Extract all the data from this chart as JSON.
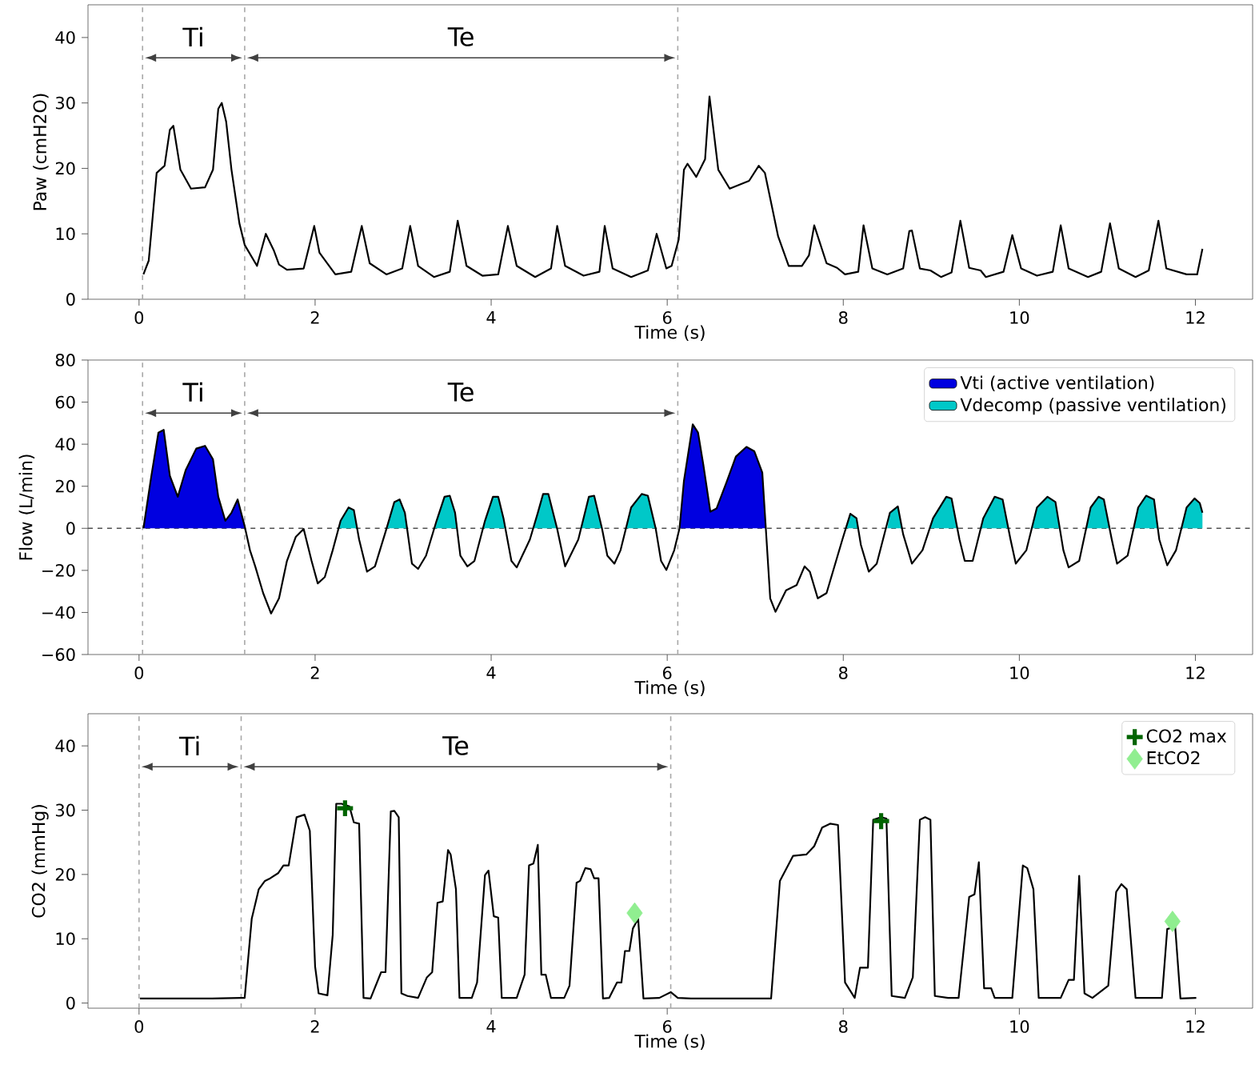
{
  "chart_data": [
    {
      "type": "line",
      "xlabel": "Time (s)",
      "ylabel": "Paw (cmH2O)",
      "xlim": [
        -0.58,
        12.65
      ],
      "ylim": [
        0,
        45
      ],
      "xticks": [
        0,
        2,
        4,
        6,
        8,
        10,
        12
      ],
      "yticks": [
        0,
        10,
        20,
        30,
        40
      ],
      "series": [
        {
          "color": "#000000",
          "x": [
            0.05,
            0.11,
            0.2,
            0.29,
            0.35,
            0.39,
            0.47,
            0.59,
            0.75,
            0.84,
            0.9,
            0.94,
            0.99,
            1.05,
            1.14,
            1.2,
            1.34,
            1.44,
            1.53,
            1.59,
            1.68,
            1.87,
            1.99,
            2.05,
            2.23,
            2.41,
            2.53,
            2.62,
            2.81,
            2.99,
            3.08,
            3.17,
            3.35,
            3.53,
            3.62,
            3.72,
            3.9,
            4.08,
            4.19,
            4.29,
            4.5,
            4.68,
            4.75,
            4.84,
            5.05,
            5.23,
            5.29,
            5.38,
            5.59,
            5.78,
            5.88,
            5.99,
            6.05,
            6.13,
            6.19,
            6.23,
            6.33,
            6.43,
            6.48,
            6.58,
            6.71,
            6.93,
            7.04,
            7.11,
            7.26,
            7.38,
            7.53,
            7.61,
            7.67,
            7.81,
            7.93,
            8.02,
            8.17,
            8.23,
            8.33,
            8.5,
            8.68,
            8.75,
            8.78,
            8.87,
            8.99,
            9.11,
            9.23,
            9.33,
            9.43,
            9.56,
            9.62,
            9.82,
            9.92,
            10.02,
            10.2,
            10.38,
            10.47,
            10.56,
            10.78,
            10.93,
            11.03,
            11.13,
            11.32,
            11.47,
            11.58,
            11.67,
            11.9,
            12.02,
            12.08
          ],
          "values": [
            3.8,
            5.9,
            19.3,
            20.4,
            25.9,
            26.5,
            19.8,
            16.9,
            17.1,
            19.8,
            29.1,
            30,
            27.1,
            19.8,
            11.6,
            8.3,
            5.1,
            10,
            7.5,
            5.3,
            4.5,
            4.7,
            11.2,
            7.1,
            3.8,
            4.2,
            11.2,
            5.5,
            3.8,
            4.7,
            11.2,
            5.1,
            3.4,
            4.2,
            12,
            5.1,
            3.6,
            3.8,
            11.2,
            5.1,
            3.4,
            4.7,
            11.2,
            5.1,
            3.6,
            4.2,
            11.2,
            4.7,
            3.4,
            4.4,
            10,
            4.7,
            5.1,
            9.1,
            19.8,
            20.7,
            18.7,
            21.4,
            31,
            19.8,
            16.9,
            18.1,
            20.4,
            19.3,
            9.6,
            5.1,
            5.1,
            6.7,
            11.3,
            5.5,
            4.8,
            3.8,
            4.2,
            11.3,
            4.7,
            3.8,
            4.7,
            10.4,
            10.5,
            4.7,
            4.4,
            3.4,
            4.1,
            12,
            4.8,
            4.4,
            3.4,
            4.2,
            9.8,
            4.7,
            3.6,
            4.2,
            11.3,
            4.7,
            3.4,
            4.2,
            11.6,
            4.7,
            3.4,
            4.4,
            12,
            4.7,
            3.8,
            3.8,
            7.7
          ]
        }
      ],
      "ref_lines": [
        {
          "axis": "x",
          "value": 0.04,
          "color": "#a8a8a8",
          "line_style": "dashed"
        },
        {
          "axis": "x",
          "value": 1.2,
          "color": "#a8a8a8",
          "line_style": "dashed"
        },
        {
          "axis": "x",
          "value": 6.12,
          "color": "#a8a8a8",
          "line_style": "dashed"
        }
      ],
      "annotations": [
        "Ti",
        "Te"
      ]
    },
    {
      "type": "line",
      "xlabel": "Time (s)",
      "ylabel": "Flow (L/min)",
      "xlim": [
        -0.58,
        12.65
      ],
      "ylim": [
        -60,
        80
      ],
      "xticks": [
        0,
        2,
        4,
        6,
        8,
        10,
        12
      ],
      "yticks": [
        {
          "value": -60,
          "label": "−60"
        },
        {
          "value": -40,
          "label": "−40"
        },
        {
          "value": -20,
          "label": "−20"
        },
        0,
        20,
        40,
        60,
        80
      ],
      "legend": "top right",
      "series": [
        {
          "type": "area",
          "name": "Vti (active ventilation)",
          "color": "#0000e0",
          "x": [
            0.05,
            0.14,
            0.22,
            0.28,
            0.35,
            0.44,
            0.53,
            0.65,
            0.75,
            0.84,
            0.9,
            0.98,
            1.05,
            1.12,
            1.2,
            1.2,
            3.5,
            6.14,
            6.19,
            6.29,
            6.35,
            6.41,
            6.49,
            6.56,
            6.68,
            6.78,
            6.9,
            6.99,
            7.08,
            7.12
          ],
          "values": [
            0,
            25,
            45.5,
            46.8,
            25,
            15,
            27.7,
            37.9,
            39.2,
            32.8,
            15,
            3.6,
            7.4,
            13.7,
            1,
            0,
            null,
            0,
            22.6,
            49.4,
            45.5,
            30.3,
            7.9,
            9.4,
            22.6,
            34.1,
            38.7,
            36.6,
            26.5,
            0
          ]
        },
        {
          "type": "area",
          "name": "Vdecomp (passive ventilation)",
          "color": "#00c8c8",
          "x": [
            2.27,
            2.29,
            2.38,
            2.44,
            2.48,
            2.6,
            2.81,
            2.9,
            2.96,
            3.02,
            3.05,
            3.2,
            3.36,
            3.38,
            3.47,
            3.53,
            3.59,
            3.62,
            3.75,
            3.91,
            3.93,
            4.02,
            4.08,
            4.14,
            4.17,
            4.3,
            4.48,
            4.53,
            4.59,
            4.65,
            4.75,
            4.85,
            5.02,
            5.11,
            5.17,
            5.26,
            5.4,
            5.53,
            5.59,
            5.71,
            5.78,
            5.87,
            7.0,
            8.02,
            8.08,
            8.15,
            8.17,
            8.3,
            8.5,
            8.53,
            8.62,
            8.66,
            8.8,
            8.99,
            9.02,
            9.17,
            9.23,
            9.29,
            9.4,
            9.56,
            9.59,
            9.72,
            9.81,
            9.87,
            10.0,
            10.15,
            10.2,
            10.32,
            10.41,
            10.46,
            10.6,
            10.76,
            10.81,
            10.9,
            10.96,
            11.02,
            11.15,
            11.3,
            11.35,
            11.44,
            11.53,
            11.57,
            11.7,
            11.85,
            11.9,
            11.99,
            12.05,
            12.08,
            12.08
          ],
          "values": [
            0,
            3.6,
            9.9,
            8.7,
            0,
            null,
            0,
            12.5,
            13.7,
            7.4,
            0,
            null,
            0,
            3.6,
            15,
            15.5,
            7.4,
            0,
            null,
            0,
            3.6,
            15,
            15,
            4.8,
            0,
            null,
            0,
            7.4,
            16.3,
            16.3,
            0,
            null,
            0,
            15,
            15.5,
            0,
            null,
            0,
            9.9,
            16.3,
            15.5,
            0,
            null,
            0,
            6.9,
            4.8,
            0,
            null,
            0,
            7.4,
            10.4,
            0,
            null,
            0,
            4.8,
            15,
            14.2,
            0,
            null,
            0,
            4.8,
            15,
            13.7,
            0,
            null,
            0,
            9.9,
            15,
            12.5,
            0,
            null,
            0,
            9.9,
            15,
            13.7,
            0,
            null,
            0,
            9.9,
            15.5,
            13.7,
            0,
            null,
            0,
            9.9,
            14.2,
            12,
            7.4,
            0
          ]
        },
        {
          "color": "#000000",
          "x": [
            0.05,
            0.14,
            0.22,
            0.28,
            0.35,
            0.44,
            0.53,
            0.65,
            0.75,
            0.84,
            0.9,
            0.98,
            1.05,
            1.12,
            1.2,
            1.26,
            1.32,
            1.41,
            1.5,
            1.59,
            1.68,
            1.78,
            1.87,
            1.96,
            2.03,
            2.11,
            2.2,
            2.29,
            2.38,
            2.44,
            2.5,
            2.59,
            2.68,
            2.81,
            2.9,
            2.96,
            3.02,
            3.1,
            3.17,
            3.26,
            3.38,
            3.47,
            3.53,
            3.59,
            3.65,
            3.73,
            3.81,
            3.93,
            4.02,
            4.08,
            4.14,
            4.23,
            4.29,
            4.44,
            4.53,
            4.59,
            4.65,
            4.75,
            4.84,
            4.99,
            5.11,
            5.17,
            5.26,
            5.32,
            5.4,
            5.47,
            5.59,
            5.71,
            5.78,
            5.87,
            5.93,
            5.99,
            6.08,
            6.14,
            6.19,
            6.29,
            6.35,
            6.41,
            6.49,
            6.56,
            6.68,
            6.78,
            6.9,
            6.99,
            7.08,
            7.12,
            7.17,
            7.23,
            7.35,
            7.47,
            7.56,
            7.62,
            7.71,
            7.81,
            7.99,
            8.08,
            8.15,
            8.2,
            8.29,
            8.38,
            8.53,
            8.62,
            8.68,
            8.78,
            8.9,
            9.02,
            9.17,
            9.23,
            9.32,
            9.38,
            9.47,
            9.59,
            9.72,
            9.81,
            9.9,
            9.96,
            10.08,
            10.2,
            10.32,
            10.41,
            10.5,
            10.56,
            10.68,
            10.81,
            10.9,
            10.96,
            11.05,
            11.11,
            11.23,
            11.35,
            11.44,
            11.53,
            11.59,
            11.68,
            11.78,
            11.9,
            11.99,
            12.05,
            12.08
          ],
          "values": [
            0,
            25,
            45.5,
            46.8,
            25,
            15,
            27.7,
            37.9,
            39.2,
            32.8,
            15,
            3.6,
            7.4,
            13.7,
            1,
            -10.4,
            -18.1,
            -30.8,
            -40.5,
            -33.3,
            -15.5,
            -4.1,
            -0.3,
            -15.5,
            -26.2,
            -23.2,
            -10.4,
            3.6,
            9.9,
            8.7,
            -5.3,
            -20.6,
            -18.1,
            -0.3,
            12.5,
            13.7,
            7.4,
            -16.8,
            -19.3,
            -13,
            3.6,
            15,
            15.5,
            7.4,
            -13,
            -18.1,
            -15.5,
            3.6,
            15,
            15,
            4.8,
            -15.5,
            -18.6,
            -5.3,
            7.4,
            16.3,
            16.3,
            -0.3,
            -18.1,
            -5.3,
            15,
            15.5,
            -0.3,
            -13,
            -16.8,
            -10.4,
            9.9,
            16.3,
            15.5,
            -0.3,
            -15.5,
            -19.8,
            -10.4,
            0,
            22.6,
            49.4,
            45.5,
            30.3,
            7.9,
            9.4,
            22.6,
            34.1,
            38.7,
            36.6,
            26.5,
            0,
            -33.3,
            -39.7,
            -29.5,
            -27,
            -18.1,
            -20.6,
            -33.3,
            -30.8,
            -5.3,
            6.9,
            4.8,
            -7.9,
            -20.6,
            -16.8,
            7.4,
            10.4,
            -2.8,
            -16.8,
            -10.4,
            4.8,
            15,
            14.2,
            -5.3,
            -15.5,
            -15.5,
            4.8,
            15,
            13.7,
            -5.3,
            -16.8,
            -10.4,
            9.9,
            15,
            12.5,
            -10.4,
            -18.6,
            -15.5,
            9.9,
            15,
            13.7,
            -5.3,
            -16.8,
            -13,
            9.9,
            15.5,
            13.7,
            -5.3,
            -17.6,
            -10.4,
            9.9,
            14.2,
            12,
            7.4
          ]
        }
      ],
      "ref_lines": [
        {
          "axis": "x",
          "value": 0.04,
          "color": "#a8a8a8",
          "line_style": "dashed"
        },
        {
          "axis": "x",
          "value": 1.2,
          "color": "#a8a8a8",
          "line_style": "dashed"
        },
        {
          "axis": "x",
          "value": 6.12,
          "color": "#a8a8a8",
          "line_style": "dashed"
        },
        {
          "axis": "y",
          "value": 0,
          "color": "#505050",
          "line_style": "dashed"
        }
      ],
      "annotations": [
        "Ti",
        "Te"
      ]
    },
    {
      "type": "line",
      "xlabel": "Time (s)",
      "ylabel": "CO2 (mmHg)",
      "xlim": [
        -0.58,
        12.65
      ],
      "ylim": [
        -0.8,
        45
      ],
      "xticks": [
        0,
        2,
        4,
        6,
        8,
        10,
        12
      ],
      "yticks": [
        0,
        10,
        20,
        30,
        40
      ],
      "legend": "top right",
      "series": [
        {
          "color": "#000000",
          "x": [
            0.01,
            0.22,
            0.52,
            0.83,
            1.16,
            1.2,
            1.28,
            1.36,
            1.43,
            1.49,
            1.58,
            1.64,
            1.7,
            1.79,
            1.88,
            1.94,
            2.0,
            2.04,
            2.14,
            2.2,
            2.24,
            2.3,
            2.39,
            2.44,
            2.5,
            2.55,
            2.63,
            2.75,
            2.8,
            2.86,
            2.9,
            2.95,
            2.98,
            3.05,
            3.17,
            3.27,
            3.33,
            3.39,
            3.45,
            3.51,
            3.54,
            3.6,
            3.64,
            3.78,
            3.84,
            3.93,
            3.97,
            4.03,
            4.08,
            4.12,
            4.29,
            4.38,
            4.43,
            4.48,
            4.53,
            4.57,
            4.62,
            4.68,
            4.83,
            4.89,
            4.97,
            5.01,
            5.07,
            5.13,
            5.17,
            5.22,
            5.27,
            5.34,
            5.43,
            5.48,
            5.52,
            5.57,
            5.61,
            5.67,
            5.73,
            5.91,
            6.04,
            6.12,
            6.27,
            6.58,
            6.88,
            7.18,
            7.28,
            7.43,
            7.58,
            7.67,
            7.76,
            7.85,
            7.94,
            8.02,
            8.13,
            8.19,
            8.28,
            8.34,
            8.43,
            8.49,
            8.55,
            8.7,
            8.79,
            8.87,
            8.93,
            8.99,
            9.04,
            9.19,
            9.31,
            9.43,
            9.49,
            9.54,
            9.6,
            9.68,
            9.72,
            9.92,
            10.04,
            10.09,
            10.16,
            10.22,
            10.47,
            10.56,
            10.62,
            10.68,
            10.74,
            10.83,
            11.01,
            11.1,
            11.16,
            11.22,
            11.32,
            11.62,
            11.68,
            11.77,
            11.83,
            12.01
          ],
          "values": [
            0.7,
            0.7,
            0.7,
            0.7,
            0.8,
            0.8,
            13.1,
            17.7,
            19,
            19.4,
            20.2,
            21.4,
            21.4,
            28.9,
            29.3,
            26.8,
            5.7,
            1.5,
            1.2,
            10.6,
            31,
            31,
            30.6,
            28.1,
            27.9,
            0.8,
            0.7,
            4.8,
            4.8,
            29.8,
            29.9,
            28.9,
            1.5,
            1.1,
            0.8,
            4,
            4.8,
            15.6,
            15.8,
            23.8,
            23.1,
            17.7,
            0.8,
            0.8,
            3.2,
            19.9,
            20.6,
            13.5,
            13.3,
            0.8,
            0.8,
            4.4,
            21.4,
            21.7,
            24.6,
            4.4,
            4.4,
            0.8,
            0.8,
            2.7,
            18.7,
            19,
            21,
            20.8,
            19.4,
            19.4,
            0.7,
            0.8,
            3.2,
            3.2,
            8.1,
            8.1,
            11.6,
            13.1,
            0.7,
            0.8,
            1.7,
            0.8,
            0.7,
            0.7,
            0.7,
            0.7,
            19,
            22.9,
            23.1,
            24.4,
            27.3,
            27.9,
            27.7,
            3.2,
            0.8,
            5.5,
            5.5,
            28.5,
            28.9,
            28.7,
            1.1,
            0.8,
            4,
            28.5,
            28.9,
            28.5,
            1.1,
            0.8,
            0.8,
            16.5,
            16.9,
            21.9,
            2.3,
            2.3,
            0.8,
            0.8,
            21.4,
            21,
            17.7,
            0.8,
            0.8,
            3.6,
            3.6,
            19.8,
            1.5,
            0.8,
            2.7,
            17.3,
            18.5,
            17.7,
            0.8,
            0.8,
            11.5,
            11.9,
            0.7,
            0.8
          ]
        },
        {
          "type": "scatter",
          "name": "CO2 max",
          "color": "#006400",
          "marker": "cross",
          "x": [
            2.34,
            8.43
          ],
          "values": [
            30.3,
            28.3
          ]
        },
        {
          "type": "scatter",
          "name": "EtCO2",
          "color": "#90ee90",
          "marker": "diamond",
          "x": [
            5.63,
            11.74
          ],
          "values": [
            14,
            12.7
          ]
        }
      ],
      "ref_lines": [
        {
          "axis": "x",
          "value": 0,
          "color": "#a8a8a8",
          "line_style": "dashed"
        },
        {
          "axis": "x",
          "value": 1.16,
          "color": "#a8a8a8",
          "line_style": "dashed"
        },
        {
          "axis": "x",
          "value": 6.04,
          "color": "#a8a8a8",
          "line_style": "dashed"
        }
      ],
      "annotations": [
        "Ti",
        "Te"
      ]
    }
  ]
}
